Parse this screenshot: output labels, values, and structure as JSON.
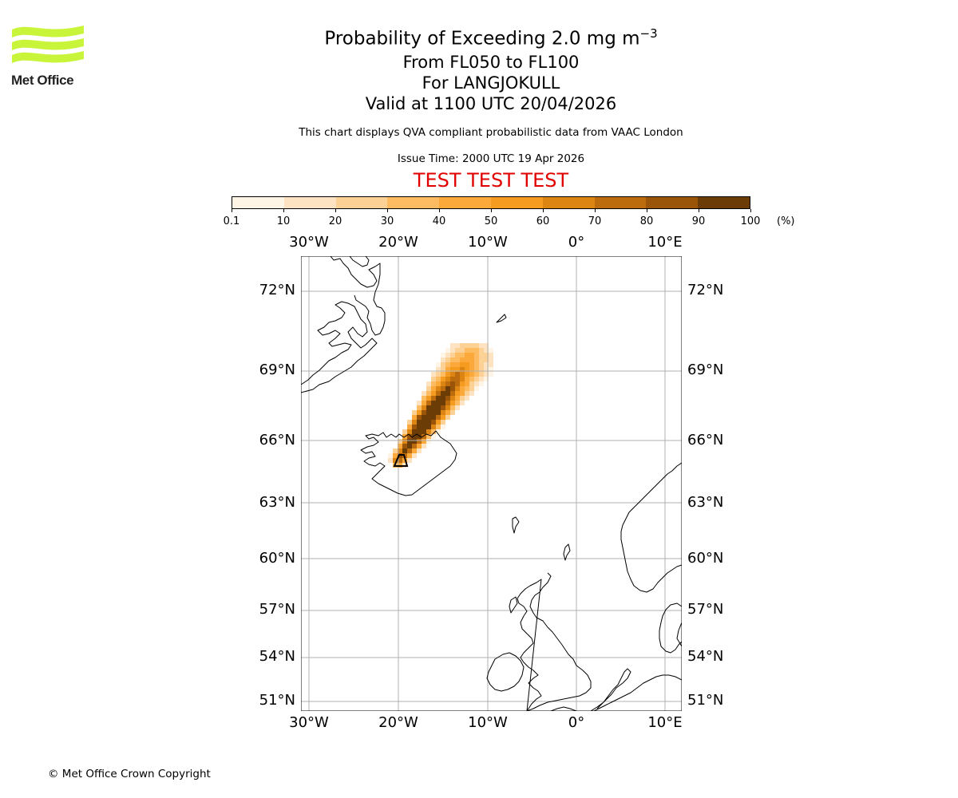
{
  "logo": {
    "text": "Met Office"
  },
  "title": {
    "line1": "Probability of Exceeding 2.0 mg m",
    "line1_sup": "−3",
    "line2": "From FL050 to FL100",
    "line3": "For LANGJOKULL",
    "line4": "Valid at 1100 UTC 20/04/2026"
  },
  "info": "This chart displays QVA compliant probabilistic data from VAAC London",
  "issue_time": "Issue Time: 2000 UTC 19 Apr 2026",
  "test_banner": "TEST TEST TEST",
  "test_color": "#e00000",
  "colorbar": {
    "ticks": [
      "0.1",
      "10",
      "20",
      "30",
      "40",
      "50",
      "60",
      "70",
      "80",
      "90",
      "100"
    ],
    "unit": "(%)",
    "colors": [
      "#fff5e6",
      "#fde3c2",
      "#fcd195",
      "#fdbb62",
      "#fba93a",
      "#f59b20",
      "#dc8512",
      "#bd6c0d",
      "#9a5509",
      "#6b3c06"
    ]
  },
  "map": {
    "lon_labels": [
      "30°W",
      "20°W",
      "10°W",
      "0°",
      "10°E"
    ],
    "lat_labels": [
      "72°N",
      "69°N",
      "66°N",
      "63°N",
      "60°N",
      "57°N",
      "54°N",
      "51°N"
    ],
    "volcano": "LANGJOKULL"
  },
  "copyright": "© Met Office Crown Copyright"
}
